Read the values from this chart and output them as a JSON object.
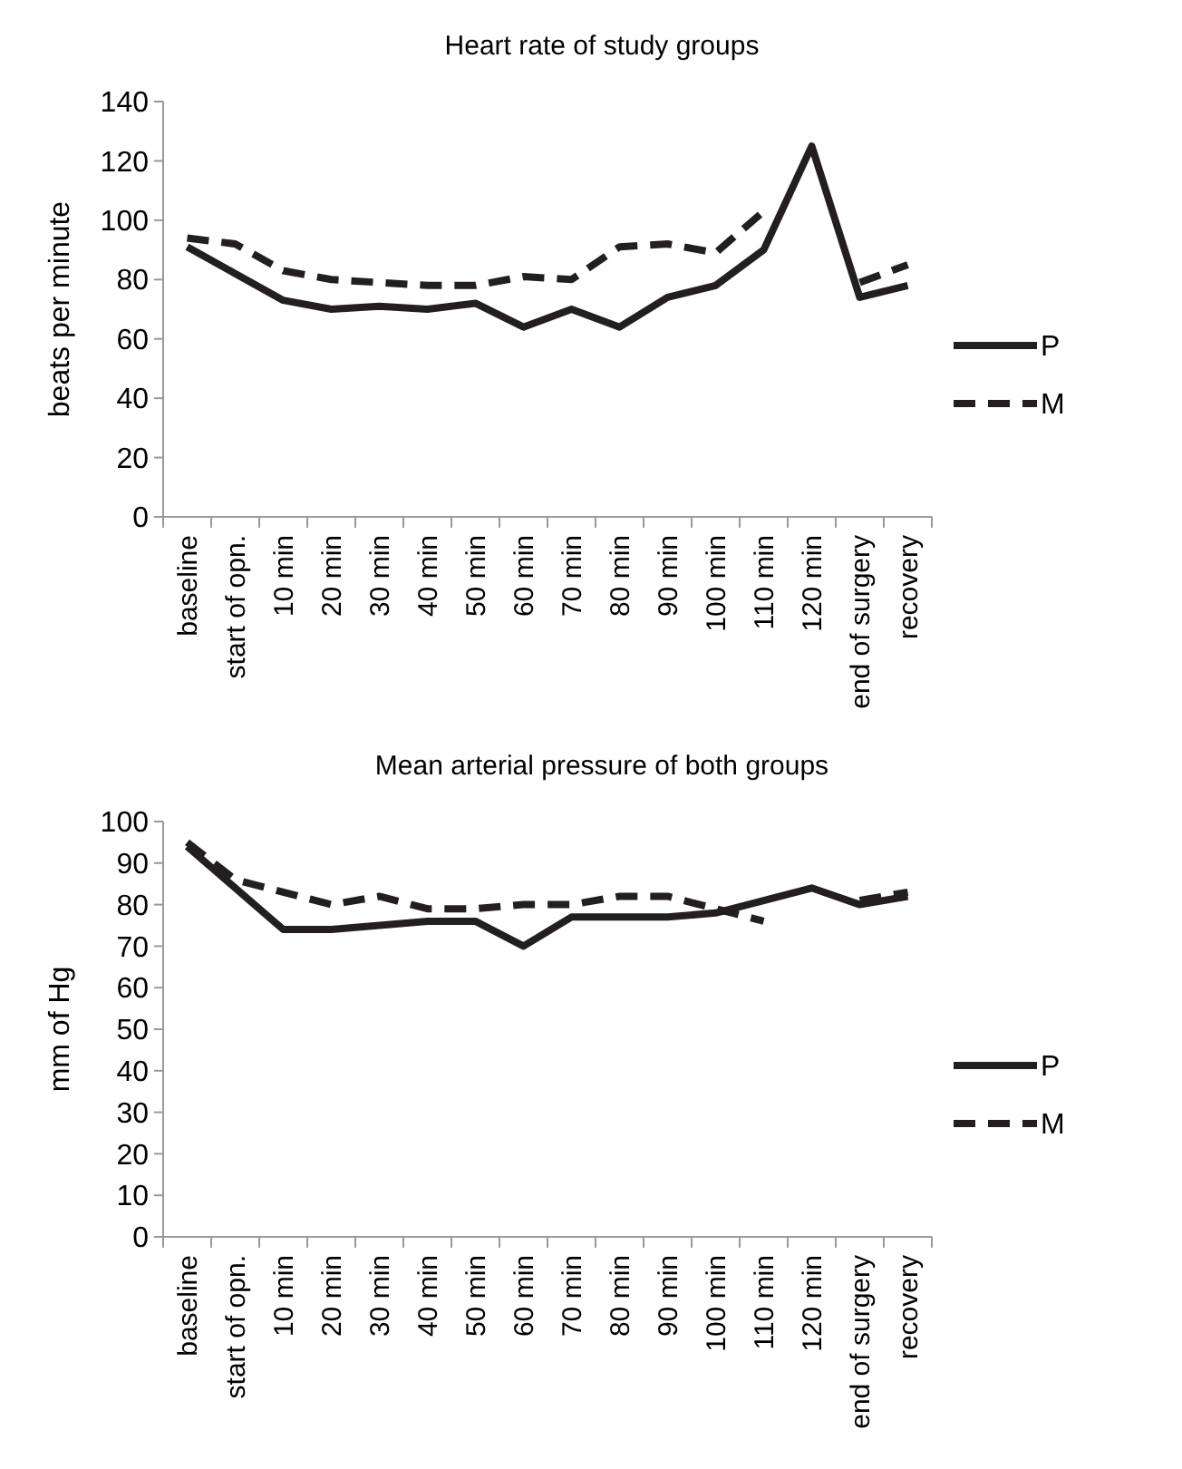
{
  "chart_data": [
    {
      "type": "line",
      "title": "Heart rate of study groups",
      "ylabel": "beats per minute",
      "categories": [
        "baseline",
        "start of opn.",
        "10 min",
        "20 min",
        "30 min",
        "40 min",
        "50 min",
        "60 min",
        "70 min",
        "80 min",
        "90 min",
        "100 min",
        "110 min",
        "120 min",
        "end of surgery",
        "recovery"
      ],
      "ylim": [
        0,
        140
      ],
      "yticks": [
        0,
        20,
        40,
        60,
        80,
        100,
        120,
        140
      ],
      "legend": "right",
      "grid": false,
      "series": [
        {
          "name": "P",
          "color": "#231f20",
          "line_style": "solid",
          "values": [
            91,
            82,
            73,
            70,
            71,
            70,
            72,
            64,
            70,
            64,
            74,
            78,
            90,
            125,
            74,
            78
          ]
        },
        {
          "name": "M",
          "color": "#231f20",
          "line_style": "dashed",
          "values": [
            94,
            92,
            83,
            80,
            79,
            78,
            78,
            81,
            80,
            91,
            92,
            89,
            103,
            null,
            79,
            85
          ]
        }
      ]
    },
    {
      "type": "line",
      "title": "Mean arterial pressure of both groups",
      "ylabel": "mm of Hg",
      "categories": [
        "baseline",
        "start of opn.",
        "10 min",
        "20 min",
        "30 min",
        "40 min",
        "50 min",
        "60 min",
        "70 min",
        "80 min",
        "90 min",
        "100 min",
        "110 min",
        "120 min",
        "end of surgery",
        "recovery"
      ],
      "ylim": [
        0,
        100
      ],
      "yticks": [
        0,
        10,
        20,
        30,
        40,
        50,
        60,
        70,
        80,
        90,
        100
      ],
      "legend": "right",
      "grid": false,
      "series": [
        {
          "name": "P",
          "color": "#231f20",
          "line_style": "solid",
          "values": [
            94,
            84,
            74,
            74,
            75,
            76,
            76,
            70,
            77,
            77,
            77,
            78,
            81,
            84,
            80,
            82
          ]
        },
        {
          "name": "M",
          "color": "#231f20",
          "line_style": "dashed",
          "values": [
            95,
            86,
            83,
            80,
            82,
            79,
            79,
            80,
            80,
            82,
            82,
            79,
            76,
            null,
            81,
            83
          ]
        }
      ]
    }
  ]
}
